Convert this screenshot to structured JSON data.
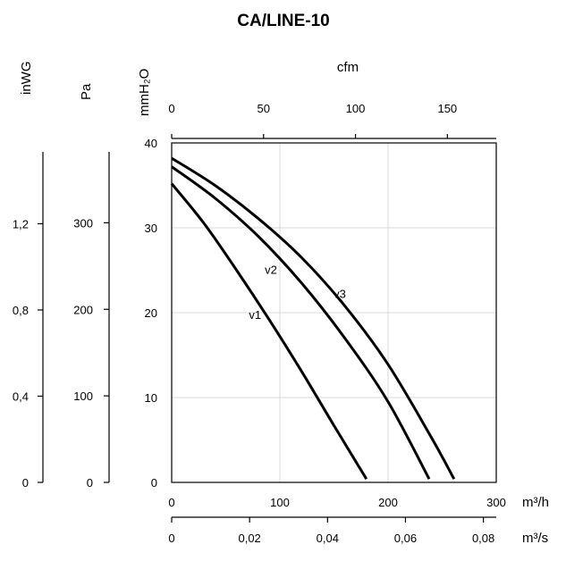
{
  "chart_data": {
    "type": "line",
    "title": "CA/LINE-10",
    "grid": true,
    "x_primary": {
      "label": "m³/h",
      "range": [
        0,
        300
      ],
      "ticks": [
        "0",
        "100",
        "200",
        "300"
      ]
    },
    "x_top": {
      "label": "cfm",
      "range": [
        0,
        176.6
      ],
      "ticks": [
        "0",
        "50",
        "100",
        "150"
      ]
    },
    "x_bottom2": {
      "label": "m³/s",
      "range": [
        0,
        0.0833
      ],
      "ticks": [
        "0",
        "0,02",
        "0,04",
        "0,06",
        "0,08"
      ]
    },
    "y_primary": {
      "label": "mmH₂O",
      "range": [
        0,
        40
      ],
      "ticks": [
        "0",
        "10",
        "20",
        "30",
        "40"
      ]
    },
    "y_pa": {
      "label": "Pa",
      "range": [
        0,
        392.3
      ],
      "ticks": [
        "0",
        "100",
        "200",
        "300"
      ]
    },
    "y_inwg": {
      "label": "inWG",
      "range": [
        0,
        1.575
      ],
      "ticks": [
        "0",
        "0,4",
        "0,8",
        "1,2"
      ]
    },
    "series": [
      {
        "name": "v1",
        "x": [
          0,
          30,
          60,
          90,
          120,
          150,
          180
        ],
        "y": [
          35.2,
          30.5,
          25.0,
          19.2,
          13.1,
          6.7,
          0.4
        ]
      },
      {
        "name": "v2",
        "x": [
          0,
          40,
          80,
          120,
          160,
          200,
          238
        ],
        "y": [
          37.2,
          33.5,
          29.0,
          23.5,
          17.0,
          9.5,
          0.4
        ]
      },
      {
        "name": "v3",
        "x": [
          0,
          40,
          80,
          120,
          160,
          200,
          240,
          261
        ],
        "y": [
          38.2,
          35.0,
          31.1,
          26.5,
          20.8,
          13.9,
          5.3,
          0.4
        ]
      }
    ]
  }
}
